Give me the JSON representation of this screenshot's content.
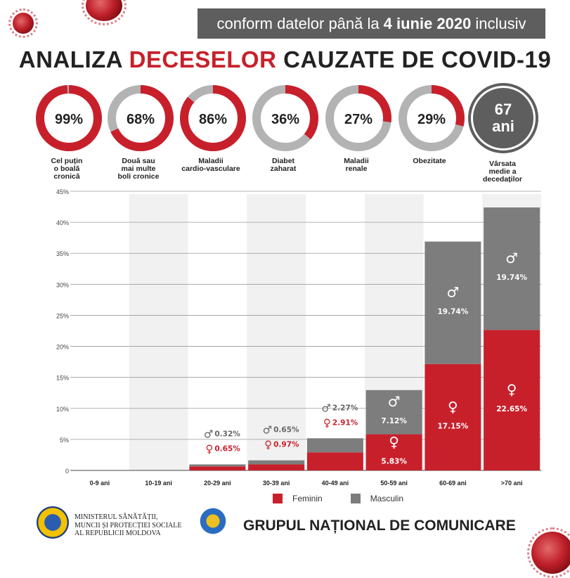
{
  "header": {
    "date_prefix": "conform datelor până la",
    "date_bold": "4 iunie 2020",
    "date_suffix": "inclusiv",
    "title_part1": "ANALIZA",
    "title_highlight": "DECESELOR",
    "title_part2": "CAUZATE DE COVID-19"
  },
  "colors": {
    "accent": "#c8202b",
    "gray": "#7d7d7d",
    "dark": "#5e5e5e",
    "ring_bg": "#b3b3b3",
    "band": "#f1f1f1"
  },
  "stats": [
    {
      "value": 99,
      "text": "99%",
      "label": [
        "Cel puțin",
        "o boală",
        "cronică"
      ]
    },
    {
      "value": 68,
      "text": "68%",
      "label": [
        "Două sau",
        "mai multe",
        "boli cronice"
      ]
    },
    {
      "value": 86,
      "text": "86%",
      "label": [
        "Maladii",
        "cardio-vasculare"
      ]
    },
    {
      "value": 36,
      "text": "36%",
      "label": [
        "Diabet",
        "zaharat"
      ]
    },
    {
      "value": 27,
      "text": "27%",
      "label": [
        "Maladii",
        "renale"
      ]
    },
    {
      "value": 29,
      "text": "29%",
      "label": [
        "Obezitate"
      ]
    }
  ],
  "age_stat": {
    "number": "67",
    "unit": "ani",
    "label": [
      "Vârsata",
      "medie a",
      "decedaților"
    ]
  },
  "chart_data": {
    "type": "bar",
    "stacked": true,
    "categories": [
      "0-9 ani",
      "10-19 ani",
      "20-29 ani",
      "30-39 ani",
      "40-49 ani",
      "50-59 ani",
      "60-69 ani",
      ">70 ani"
    ],
    "series": [
      {
        "name": "Feminin",
        "color": "#c8202b",
        "values": [
          0,
          0,
          0.65,
          0.97,
          2.91,
          5.83,
          17.15,
          22.65
        ],
        "labels": [
          "",
          "",
          "0.65%",
          "0.97%",
          "2.91%",
          "5.83%",
          "17.15%",
          "22.65%"
        ]
      },
      {
        "name": "Masculin",
        "color": "#7d7d7d",
        "values": [
          0,
          0,
          0.32,
          0.65,
          2.27,
          7.12,
          19.74,
          19.74
        ],
        "labels": [
          "",
          "",
          "0.32%",
          "0.65%",
          "2.27%",
          "7.12%",
          "19.74%",
          "19.74%"
        ]
      }
    ],
    "y_ticks": [
      "0",
      "5%",
      "10%",
      "15%",
      "20%",
      "25%",
      "30%",
      "35%",
      "40%",
      "45%"
    ],
    "ylim": [
      0,
      45
    ],
    "grid": true,
    "legend_position": "bottom"
  },
  "footer": {
    "ministry_lines": [
      "MINISTERUL SĂNĂTĂȚII,",
      "MUNCII ȘI PROTECȚIEI SOCIALE",
      "AL REPUBLICII MOLDOVA"
    ],
    "group_name": "GRUPUL NAȚIONAL DE COMUNICARE"
  }
}
